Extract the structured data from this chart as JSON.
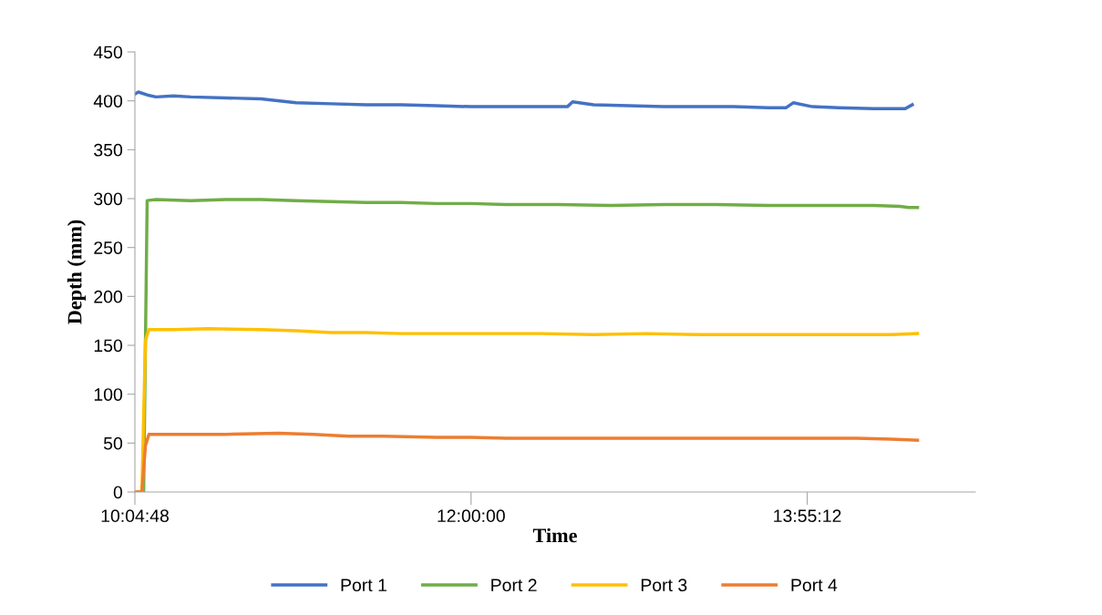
{
  "chart_data": {
    "type": "line",
    "xlabel": "Time",
    "ylabel": "Depth (mm)",
    "xlim": [
      10.08,
      14.88
    ],
    "xticks": [
      {
        "value": 10.08,
        "label": "10:04:48"
      },
      {
        "value": 12,
        "label": "12:00:00"
      },
      {
        "value": 13.92,
        "label": "13:55:12"
      }
    ],
    "ylim": [
      0,
      450
    ],
    "yticks": [
      0,
      50,
      100,
      150,
      200,
      250,
      300,
      350,
      400,
      450
    ],
    "grid": false,
    "legend": "bottom",
    "marker": "none",
    "line_style": "solid",
    "series": [
      {
        "name": "Port 1",
        "color": "#4472c4",
        "x": [
          10.08,
          10.1,
          10.15,
          10.2,
          10.3,
          10.4,
          10.6,
          10.8,
          11.0,
          11.2,
          11.4,
          11.6,
          11.8,
          12.0,
          12.2,
          12.4,
          12.55,
          12.58,
          12.7,
          12.9,
          13.1,
          13.3,
          13.5,
          13.7,
          13.8,
          13.84,
          13.95,
          14.1,
          14.3,
          14.48,
          14.52
        ],
        "values": [
          407,
          409,
          406,
          404,
          405,
          404,
          403,
          402,
          398,
          397,
          396,
          396,
          395,
          394,
          394,
          394,
          394,
          399,
          396,
          395,
          394,
          394,
          394,
          393,
          393,
          398,
          394,
          393,
          392,
          392,
          396
        ]
      },
      {
        "name": "Port 2",
        "color": "#70ad47",
        "x": [
          10.08,
          10.13,
          10.15,
          10.2,
          10.4,
          10.6,
          10.8,
          11.0,
          11.2,
          11.4,
          11.6,
          11.8,
          12.0,
          12.2,
          12.5,
          12.8,
          13.1,
          13.4,
          13.7,
          14.0,
          14.3,
          14.45,
          14.5,
          14.55
        ],
        "values": [
          0,
          0,
          298,
          299,
          298,
          299,
          299,
          298,
          297,
          296,
          296,
          295,
          295,
          294,
          294,
          293,
          294,
          294,
          293,
          293,
          293,
          292,
          291,
          291
        ]
      },
      {
        "name": "Port 3",
        "color": "#ffc000",
        "x": [
          10.08,
          10.12,
          10.14,
          10.16,
          10.3,
          10.5,
          10.8,
          11.0,
          11.2,
          11.4,
          11.6,
          11.8,
          12.1,
          12.4,
          12.7,
          13.0,
          13.3,
          13.6,
          13.9,
          14.2,
          14.4,
          14.55
        ],
        "values": [
          0,
          0,
          155,
          166,
          166,
          167,
          166,
          165,
          163,
          163,
          162,
          162,
          162,
          162,
          161,
          162,
          161,
          161,
          161,
          161,
          161,
          162
        ]
      },
      {
        "name": "Port 4",
        "color": "#ed7d31",
        "x": [
          10.08,
          10.12,
          10.14,
          10.16,
          10.3,
          10.6,
          10.9,
          11.1,
          11.3,
          11.5,
          11.8,
          12.0,
          12.2,
          12.5,
          12.7,
          13.0,
          13.3,
          13.6,
          13.9,
          14.2,
          14.4,
          14.55
        ],
        "values": [
          0,
          0,
          47,
          59,
          59,
          59,
          60,
          59,
          57,
          57,
          56,
          56,
          55,
          55,
          55,
          55,
          55,
          55,
          55,
          55,
          54,
          53
        ]
      }
    ]
  }
}
